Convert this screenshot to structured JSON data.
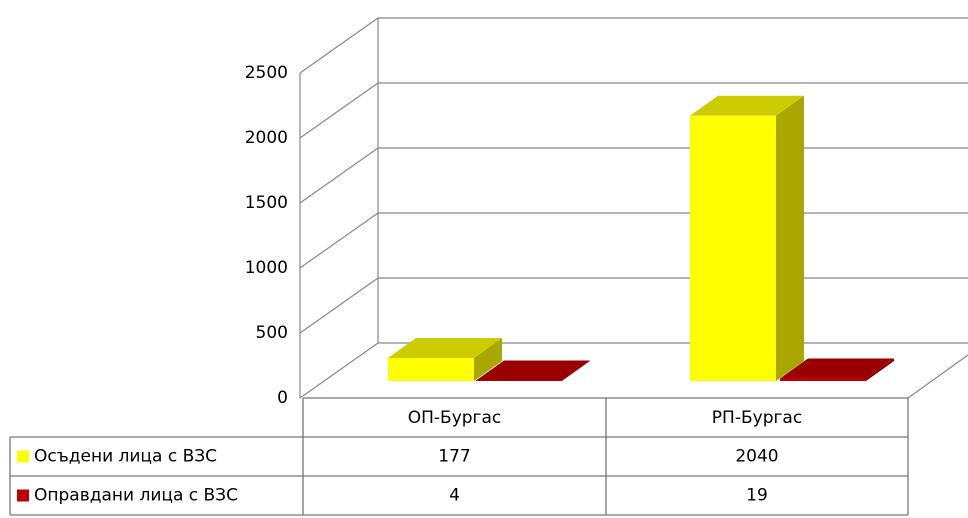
{
  "chart_data": {
    "type": "bar",
    "categories": [
      "ОП-Бургас",
      "РП-Бургас"
    ],
    "series": [
      {
        "name": "Осъдени лица с ВЗС",
        "color": "#ffff00",
        "values": [
          177,
          2040
        ]
      },
      {
        "name": "Оправдани лица с ВЗС",
        "color": "#c00000",
        "values": [
          4,
          19
        ]
      }
    ],
    "ylim": [
      0,
      2500
    ],
    "yticks": [
      0,
      500,
      1000,
      1500,
      2000,
      2500
    ],
    "grid": true
  }
}
